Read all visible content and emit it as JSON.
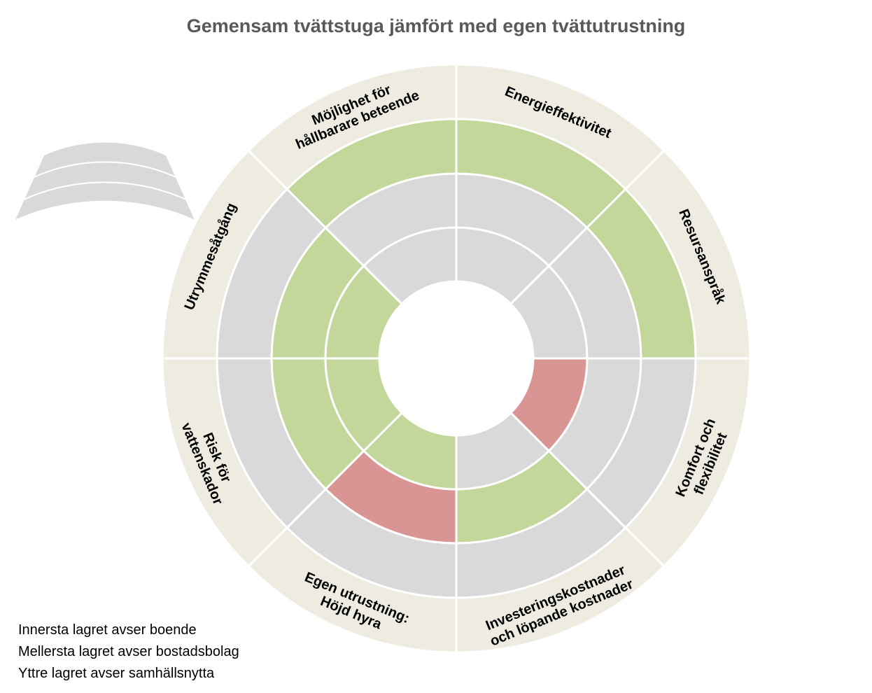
{
  "title": "Gemensam tvättstuga jämfört med egen tvättutrustning",
  "colors": {
    "positive": "#c4d79b",
    "negative": "#d99594",
    "neutral": "#d9d9d9",
    "label_ring": "#eeece1",
    "divider": "#ffffff"
  },
  "chart_data": {
    "type": "sunburst",
    "title": "Gemensam tvättstuga jämfört med egen tvättutrustning",
    "layers": [
      "Innersta lagret avser boende",
      "Mellersta lagret avser bostadsbolag",
      "Yttre lagret avser samhällsnytta"
    ],
    "segments": [
      {
        "label": [
          "Energieffektivitet"
        ],
        "inner": "neutral",
        "middle": "neutral",
        "outer": "positive"
      },
      {
        "label": [
          "Resursanspråk"
        ],
        "inner": "neutral",
        "middle": "neutral",
        "outer": "positive"
      },
      {
        "label": [
          "Komfort och",
          "flexibilitet"
        ],
        "inner": "negative",
        "middle": "neutral",
        "outer": "neutral"
      },
      {
        "label": [
          "Investeringskostnader",
          "och löpande kostnader"
        ],
        "inner": "neutral",
        "middle": "positive",
        "outer": "neutral"
      },
      {
        "label": [
          "Egen utrustning:",
          "Höjd hyra"
        ],
        "inner": "positive",
        "middle": "negative",
        "outer": "neutral"
      },
      {
        "label": [
          "Risk för",
          "vattenskador"
        ],
        "inner": "positive",
        "middle": "positive",
        "outer": "neutral"
      },
      {
        "label": [
          "Utrymmesåtgång"
        ],
        "inner": "positive",
        "middle": "positive",
        "outer": "neutral"
      },
      {
        "label": [
          "Möjlighet för",
          "hållbarare beteende"
        ],
        "inner": "neutral",
        "middle": "neutral",
        "outer": "positive"
      }
    ]
  },
  "legend": {
    "lines": [
      "Innersta lagret avser boende",
      "Mellersta lagret avser bostadsbolag",
      "Yttre lagret avser samhällsnytta"
    ]
  }
}
